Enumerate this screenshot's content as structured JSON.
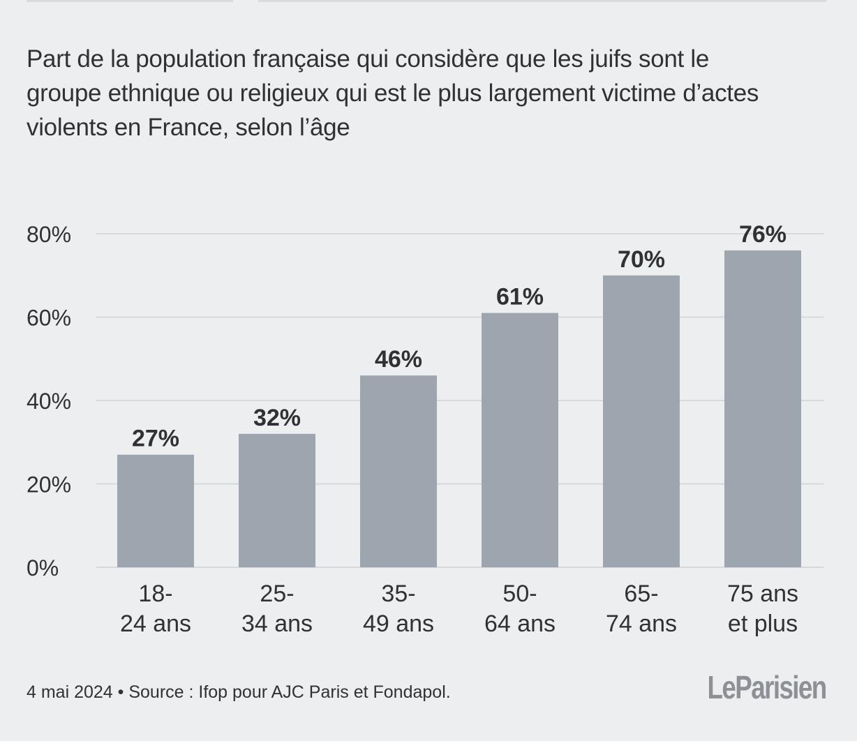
{
  "chart_data": {
    "type": "bar",
    "title": "Part de la population française qui considère que les juifs sont le groupe ethnique ou religieux qui est le plus largement victime d’actes violents en France, selon l’âge",
    "categories": [
      [
        "18-",
        "24 ans"
      ],
      [
        "25-",
        "34 ans"
      ],
      [
        "35-",
        "49 ans"
      ],
      [
        "50-",
        "64 ans"
      ],
      [
        "65-",
        "74 ans"
      ],
      [
        "75 ans",
        "et plus"
      ]
    ],
    "values": [
      27,
      32,
      46,
      61,
      70,
      76
    ],
    "value_labels": [
      "27%",
      "32%",
      "46%",
      "61%",
      "70%",
      "76%"
    ],
    "y_ticks": [
      0,
      20,
      40,
      60,
      80
    ],
    "y_tick_labels": [
      "0%",
      "20%",
      "40%",
      "60%",
      "80%"
    ],
    "ylim": [
      0,
      80
    ],
    "xlabel": "",
    "ylabel": "",
    "grid": true,
    "legend": "none",
    "colors": {
      "bar": "#9da5ae",
      "grid": "#d6d9dc",
      "text": "#2f3134",
      "background": "#eceef0"
    }
  },
  "footer": {
    "source": "4 mai 2024 • Source : Ifop pour AJC Paris et Fondapol."
  },
  "brand": {
    "logo_text": "LeParisien"
  }
}
